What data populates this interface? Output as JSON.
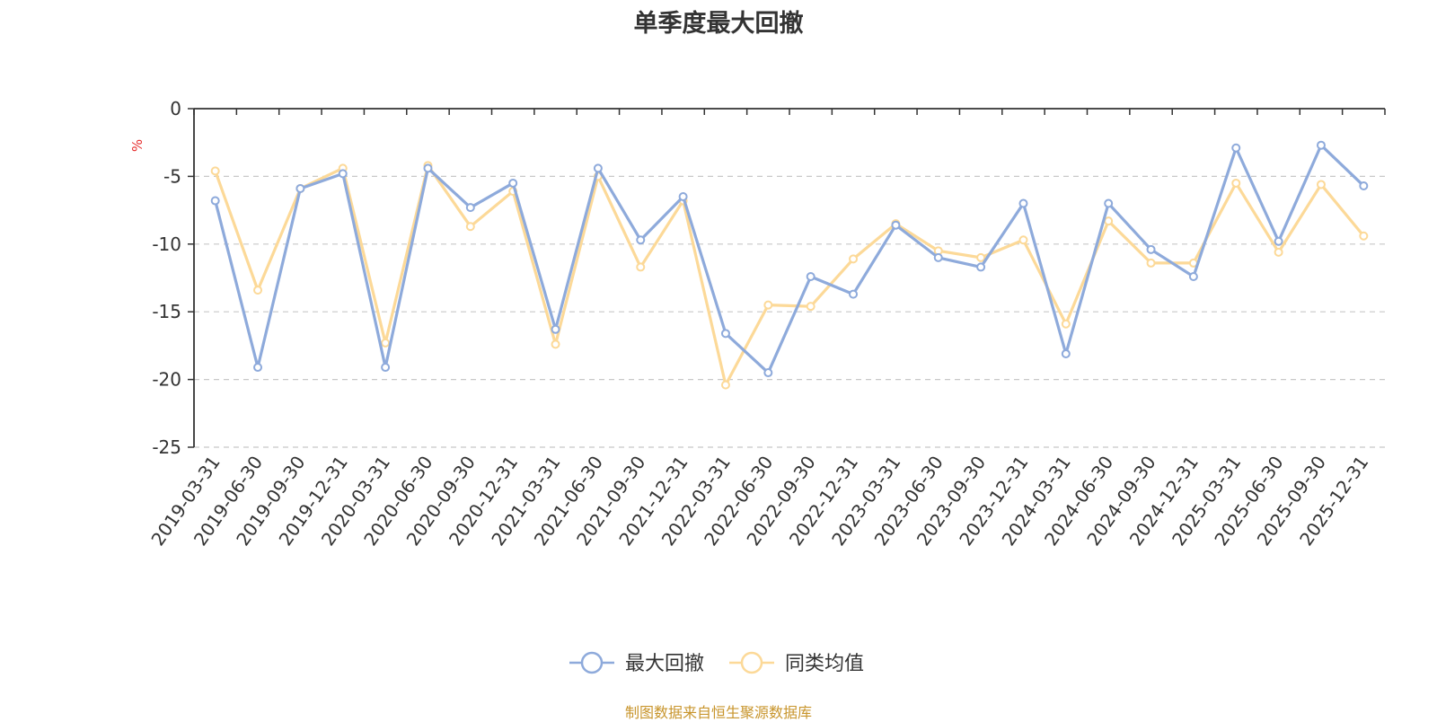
{
  "chart_data": {
    "type": "line",
    "title": "单季度最大回撤",
    "ylabel": "%",
    "ylim": [
      -25,
      0
    ],
    "yticks": [
      0,
      -5,
      -10,
      -15,
      -20,
      -25
    ],
    "grid": true,
    "legend_position": "bottom-center",
    "categories": [
      "2019-03-31",
      "2019-06-30",
      "2019-09-30",
      "2019-12-31",
      "2020-03-31",
      "2020-06-30",
      "2020-09-30",
      "2020-12-31",
      "2021-03-31",
      "2021-06-30",
      "2021-09-30",
      "2021-12-31",
      "2022-03-31",
      "2022-06-30",
      "2022-09-30",
      "2022-12-31",
      "2023-03-31",
      "2023-06-30",
      "2023-09-30",
      "2023-12-31",
      "2024-03-31",
      "2024-06-30",
      "2024-09-30",
      "2024-12-31",
      "2025-03-31",
      "2025-06-30",
      "2025-09-30",
      "2025-12-31"
    ],
    "series": [
      {
        "name": "最大回撤",
        "color": "#8eaadb",
        "values": [
          -6.8,
          -19.1,
          -5.9,
          -4.8,
          -19.1,
          -4.4,
          -7.3,
          -5.5,
          -16.3,
          -4.4,
          -9.7,
          -6.5,
          -16.6,
          -19.5,
          -12.4,
          -13.7,
          -8.6,
          -11.0,
          -11.7,
          -7.0,
          -18.1,
          -7.0,
          -10.4,
          -12.4,
          -2.9,
          -9.8,
          -2.7,
          -5.7
        ]
      },
      {
        "name": "同类均值",
        "color": "#fcd998",
        "values": [
          -4.6,
          -13.4,
          -5.9,
          -4.4,
          -17.3,
          -4.2,
          -8.7,
          -6.1,
          -17.4,
          -5.0,
          -11.7,
          -6.8,
          -20.4,
          -14.5,
          -14.6,
          -11.1,
          -8.5,
          -10.5,
          -11.0,
          -9.7,
          -15.9,
          -8.3,
          -11.4,
          -11.4,
          -5.5,
          -10.6,
          -5.6,
          -9.4
        ]
      }
    ]
  },
  "footer": {
    "source": "制图数据来自恒生聚源数据库"
  }
}
